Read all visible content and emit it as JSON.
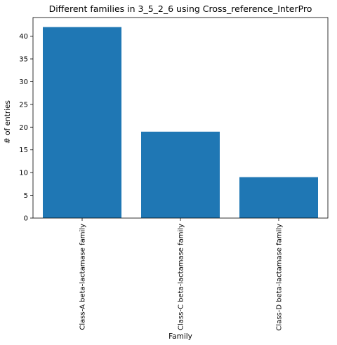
{
  "chart_data": {
    "type": "bar",
    "title": "Different families in 3_5_2_6 using Cross_reference_InterPro",
    "xlabel": "Family",
    "ylabel": "# of entries",
    "categories": [
      "Class-A beta-lactamase family",
      "Class-C beta-lactamase family",
      "Class-D beta-lactamase family"
    ],
    "values": [
      42,
      19,
      9
    ],
    "ylim": [
      0,
      44.1
    ],
    "yticks": [
      0,
      5,
      10,
      15,
      20,
      25,
      30,
      35,
      40
    ],
    "xtick_rotation": "vertical",
    "bar_color": "#1f77b4",
    "grid": false,
    "legend": "none"
  }
}
